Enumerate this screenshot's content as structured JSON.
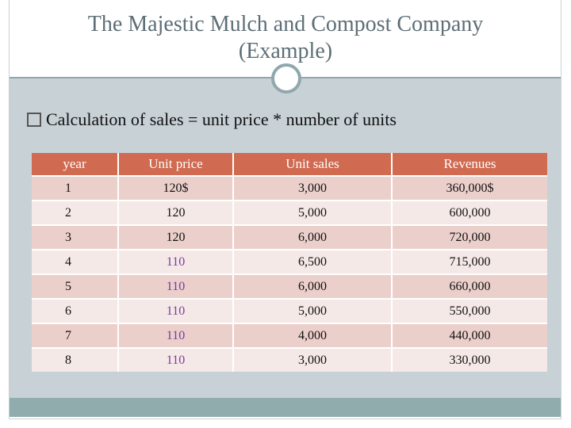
{
  "title": {
    "line1": "The Majestic Mulch and Compost Company",
    "line2": "(Example)"
  },
  "bullet": {
    "text": "Calculation of sales = unit price * number of units"
  },
  "table": {
    "headers": [
      "year",
      "Unit price",
      "Unit sales",
      "Revenues"
    ],
    "rows": [
      {
        "year": "1",
        "price": "120$",
        "sales": "3,000",
        "revenue": "360,000$",
        "price_color": "#111111"
      },
      {
        "year": "2",
        "price": "120",
        "sales": "5,000",
        "revenue": "600,000",
        "price_color": "#111111"
      },
      {
        "year": "3",
        "price": "120",
        "sales": "6,000",
        "revenue": "720,000",
        "price_color": "#111111"
      },
      {
        "year": "4",
        "price": "110",
        "sales": "6,500",
        "revenue": "715,000",
        "price_color": "#7b3aa0"
      },
      {
        "year": "5",
        "price": "110",
        "sales": "6,000",
        "revenue": "660,000",
        "price_color": "#7b3aa0"
      },
      {
        "year": "6",
        "price": "110",
        "sales": "5,000",
        "revenue": "550,000",
        "price_color": "#7b3aa0"
      },
      {
        "year": "7",
        "price": "110",
        "sales": "4,000",
        "revenue": "440,000",
        "price_color": "#7b3aa0"
      },
      {
        "year": "8",
        "price": "110",
        "sales": "3,000",
        "revenue": "330,000",
        "price_color": "#7b3aa0"
      }
    ]
  },
  "colors": {
    "header_bg": "#d06a50",
    "row_odd": "#ebcfcb",
    "row_even": "#f5e9e7",
    "body_bg": "#c7d1d6",
    "accent": "#8fa7ad"
  }
}
